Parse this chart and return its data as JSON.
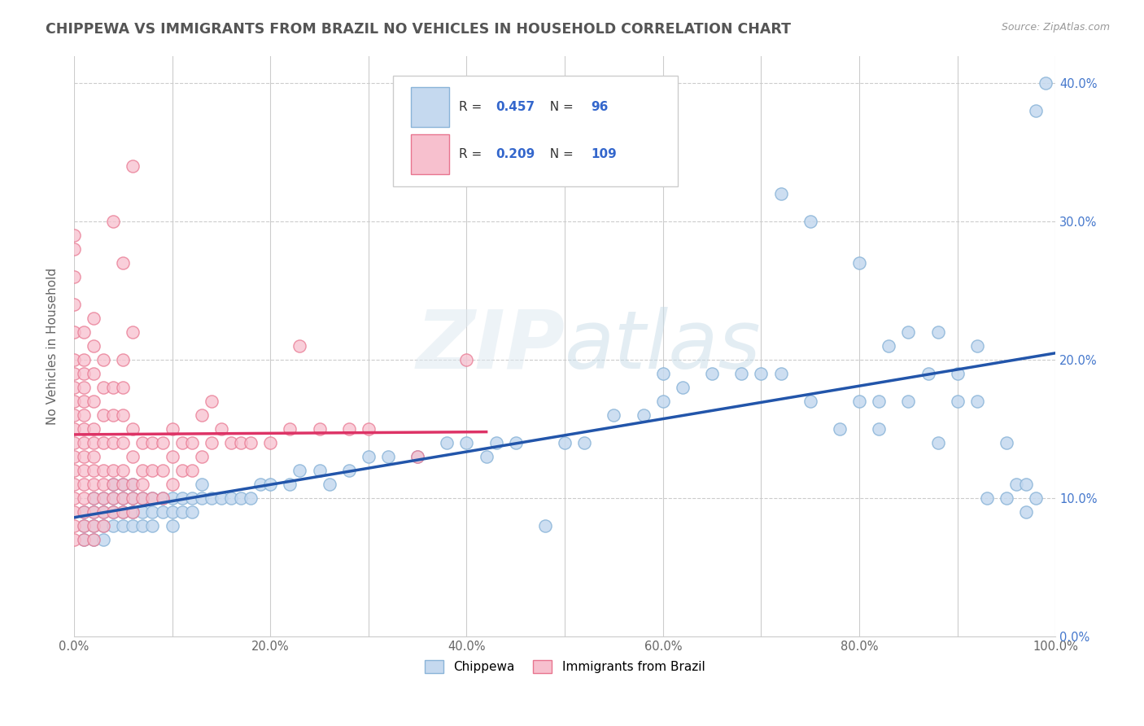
{
  "title": "CHIPPEWA VS IMMIGRANTS FROM BRAZIL NO VEHICLES IN HOUSEHOLD CORRELATION CHART",
  "source": "Source: ZipAtlas.com",
  "ylabel": "No Vehicles in Household",
  "watermark": "ZIPatlas",
  "legend1_label": "Chippewa",
  "legend2_label": "Immigrants from Brazil",
  "r1": 0.457,
  "n1": 96,
  "r2": 0.209,
  "n2": 109,
  "color1_fill": "#c5d9ef",
  "color1_edge": "#8ab4d8",
  "color2_fill": "#f7c0ce",
  "color2_edge": "#e8758f",
  "line1_color": "#2255aa",
  "line2_color": "#dd3366",
  "xlim": [
    0.0,
    1.0
  ],
  "ylim": [
    0.0,
    0.42
  ],
  "xticks": [
    0.0,
    0.1,
    0.2,
    0.3,
    0.4,
    0.5,
    0.6,
    0.7,
    0.8,
    0.9,
    1.0
  ],
  "yticks": [
    0.0,
    0.1,
    0.2,
    0.3,
    0.4
  ],
  "ytick_labels_right": [
    "0.0%",
    "10.0%",
    "20.0%",
    "30.0%",
    "40.0%"
  ],
  "xtick_labels": [
    "0.0%",
    "",
    "20.0%",
    "",
    "40.0%",
    "",
    "60.0%",
    "",
    "80.0%",
    "",
    "100.0%"
  ],
  "blue_points": [
    [
      0.01,
      0.07
    ],
    [
      0.01,
      0.08
    ],
    [
      0.01,
      0.09
    ],
    [
      0.02,
      0.07
    ],
    [
      0.02,
      0.08
    ],
    [
      0.02,
      0.09
    ],
    [
      0.02,
      0.1
    ],
    [
      0.03,
      0.07
    ],
    [
      0.03,
      0.08
    ],
    [
      0.03,
      0.09
    ],
    [
      0.03,
      0.1
    ],
    [
      0.04,
      0.08
    ],
    [
      0.04,
      0.09
    ],
    [
      0.04,
      0.1
    ],
    [
      0.04,
      0.11
    ],
    [
      0.05,
      0.08
    ],
    [
      0.05,
      0.09
    ],
    [
      0.05,
      0.1
    ],
    [
      0.05,
      0.11
    ],
    [
      0.06,
      0.08
    ],
    [
      0.06,
      0.09
    ],
    [
      0.06,
      0.1
    ],
    [
      0.06,
      0.11
    ],
    [
      0.07,
      0.08
    ],
    [
      0.07,
      0.09
    ],
    [
      0.07,
      0.1
    ],
    [
      0.08,
      0.08
    ],
    [
      0.08,
      0.09
    ],
    [
      0.08,
      0.1
    ],
    [
      0.09,
      0.09
    ],
    [
      0.09,
      0.1
    ],
    [
      0.1,
      0.08
    ],
    [
      0.1,
      0.09
    ],
    [
      0.1,
      0.1
    ],
    [
      0.11,
      0.09
    ],
    [
      0.11,
      0.1
    ],
    [
      0.12,
      0.09
    ],
    [
      0.12,
      0.1
    ],
    [
      0.13,
      0.1
    ],
    [
      0.13,
      0.11
    ],
    [
      0.14,
      0.1
    ],
    [
      0.15,
      0.1
    ],
    [
      0.16,
      0.1
    ],
    [
      0.17,
      0.1
    ],
    [
      0.18,
      0.1
    ],
    [
      0.19,
      0.11
    ],
    [
      0.2,
      0.11
    ],
    [
      0.22,
      0.11
    ],
    [
      0.23,
      0.12
    ],
    [
      0.25,
      0.12
    ],
    [
      0.26,
      0.11
    ],
    [
      0.28,
      0.12
    ],
    [
      0.3,
      0.13
    ],
    [
      0.32,
      0.13
    ],
    [
      0.35,
      0.13
    ],
    [
      0.38,
      0.14
    ],
    [
      0.4,
      0.14
    ],
    [
      0.42,
      0.13
    ],
    [
      0.43,
      0.14
    ],
    [
      0.45,
      0.14
    ],
    [
      0.48,
      0.08
    ],
    [
      0.5,
      0.14
    ],
    [
      0.52,
      0.14
    ],
    [
      0.55,
      0.16
    ],
    [
      0.58,
      0.16
    ],
    [
      0.6,
      0.17
    ],
    [
      0.6,
      0.19
    ],
    [
      0.62,
      0.18
    ],
    [
      0.65,
      0.19
    ],
    [
      0.68,
      0.19
    ],
    [
      0.7,
      0.19
    ],
    [
      0.72,
      0.19
    ],
    [
      0.75,
      0.17
    ],
    [
      0.78,
      0.15
    ],
    [
      0.8,
      0.17
    ],
    [
      0.8,
      0.27
    ],
    [
      0.82,
      0.17
    ],
    [
      0.83,
      0.21
    ],
    [
      0.85,
      0.22
    ],
    [
      0.85,
      0.17
    ],
    [
      0.87,
      0.19
    ],
    [
      0.88,
      0.14
    ],
    [
      0.9,
      0.19
    ],
    [
      0.9,
      0.17
    ],
    [
      0.92,
      0.17
    ],
    [
      0.93,
      0.1
    ],
    [
      0.95,
      0.14
    ],
    [
      0.95,
      0.1
    ],
    [
      0.96,
      0.11
    ],
    [
      0.97,
      0.11
    ],
    [
      0.97,
      0.09
    ],
    [
      0.98,
      0.1
    ],
    [
      0.98,
      0.38
    ],
    [
      0.99,
      0.4
    ],
    [
      0.72,
      0.32
    ],
    [
      0.75,
      0.3
    ],
    [
      0.82,
      0.15
    ],
    [
      0.88,
      0.22
    ],
    [
      0.92,
      0.21
    ]
  ],
  "pink_points": [
    [
      0.0,
      0.07
    ],
    [
      0.0,
      0.08
    ],
    [
      0.0,
      0.09
    ],
    [
      0.0,
      0.1
    ],
    [
      0.0,
      0.11
    ],
    [
      0.0,
      0.12
    ],
    [
      0.0,
      0.13
    ],
    [
      0.0,
      0.14
    ],
    [
      0.0,
      0.15
    ],
    [
      0.0,
      0.16
    ],
    [
      0.0,
      0.17
    ],
    [
      0.0,
      0.18
    ],
    [
      0.0,
      0.19
    ],
    [
      0.0,
      0.2
    ],
    [
      0.0,
      0.22
    ],
    [
      0.0,
      0.24
    ],
    [
      0.0,
      0.26
    ],
    [
      0.0,
      0.28
    ],
    [
      0.0,
      0.29
    ],
    [
      0.01,
      0.07
    ],
    [
      0.01,
      0.08
    ],
    [
      0.01,
      0.09
    ],
    [
      0.01,
      0.1
    ],
    [
      0.01,
      0.11
    ],
    [
      0.01,
      0.12
    ],
    [
      0.01,
      0.13
    ],
    [
      0.01,
      0.14
    ],
    [
      0.01,
      0.15
    ],
    [
      0.01,
      0.16
    ],
    [
      0.01,
      0.17
    ],
    [
      0.01,
      0.18
    ],
    [
      0.01,
      0.19
    ],
    [
      0.01,
      0.2
    ],
    [
      0.01,
      0.22
    ],
    [
      0.02,
      0.07
    ],
    [
      0.02,
      0.08
    ],
    [
      0.02,
      0.09
    ],
    [
      0.02,
      0.1
    ],
    [
      0.02,
      0.11
    ],
    [
      0.02,
      0.12
    ],
    [
      0.02,
      0.13
    ],
    [
      0.02,
      0.14
    ],
    [
      0.02,
      0.15
    ],
    [
      0.02,
      0.17
    ],
    [
      0.02,
      0.19
    ],
    [
      0.02,
      0.21
    ],
    [
      0.02,
      0.23
    ],
    [
      0.03,
      0.08
    ],
    [
      0.03,
      0.09
    ],
    [
      0.03,
      0.1
    ],
    [
      0.03,
      0.11
    ],
    [
      0.03,
      0.12
    ],
    [
      0.03,
      0.14
    ],
    [
      0.03,
      0.16
    ],
    [
      0.03,
      0.18
    ],
    [
      0.03,
      0.2
    ],
    [
      0.04,
      0.09
    ],
    [
      0.04,
      0.1
    ],
    [
      0.04,
      0.11
    ],
    [
      0.04,
      0.12
    ],
    [
      0.04,
      0.14
    ],
    [
      0.04,
      0.16
    ],
    [
      0.04,
      0.18
    ],
    [
      0.05,
      0.09
    ],
    [
      0.05,
      0.1
    ],
    [
      0.05,
      0.11
    ],
    [
      0.05,
      0.12
    ],
    [
      0.05,
      0.14
    ],
    [
      0.05,
      0.16
    ],
    [
      0.05,
      0.18
    ],
    [
      0.05,
      0.2
    ],
    [
      0.06,
      0.09
    ],
    [
      0.06,
      0.1
    ],
    [
      0.06,
      0.11
    ],
    [
      0.06,
      0.13
    ],
    [
      0.06,
      0.15
    ],
    [
      0.06,
      0.22
    ],
    [
      0.07,
      0.1
    ],
    [
      0.07,
      0.11
    ],
    [
      0.07,
      0.12
    ],
    [
      0.07,
      0.14
    ],
    [
      0.08,
      0.1
    ],
    [
      0.08,
      0.12
    ],
    [
      0.08,
      0.14
    ],
    [
      0.09,
      0.1
    ],
    [
      0.09,
      0.12
    ],
    [
      0.09,
      0.14
    ],
    [
      0.1,
      0.11
    ],
    [
      0.1,
      0.13
    ],
    [
      0.1,
      0.15
    ],
    [
      0.11,
      0.12
    ],
    [
      0.11,
      0.14
    ],
    [
      0.12,
      0.12
    ],
    [
      0.12,
      0.14
    ],
    [
      0.13,
      0.13
    ],
    [
      0.13,
      0.16
    ],
    [
      0.14,
      0.14
    ],
    [
      0.14,
      0.17
    ],
    [
      0.15,
      0.15
    ],
    [
      0.16,
      0.14
    ],
    [
      0.17,
      0.14
    ],
    [
      0.18,
      0.14
    ],
    [
      0.2,
      0.14
    ],
    [
      0.22,
      0.15
    ],
    [
      0.05,
      0.27
    ],
    [
      0.06,
      0.34
    ],
    [
      0.23,
      0.21
    ],
    [
      0.25,
      0.15
    ],
    [
      0.28,
      0.15
    ],
    [
      0.3,
      0.15
    ],
    [
      0.35,
      0.13
    ],
    [
      0.4,
      0.2
    ],
    [
      0.04,
      0.3
    ]
  ]
}
